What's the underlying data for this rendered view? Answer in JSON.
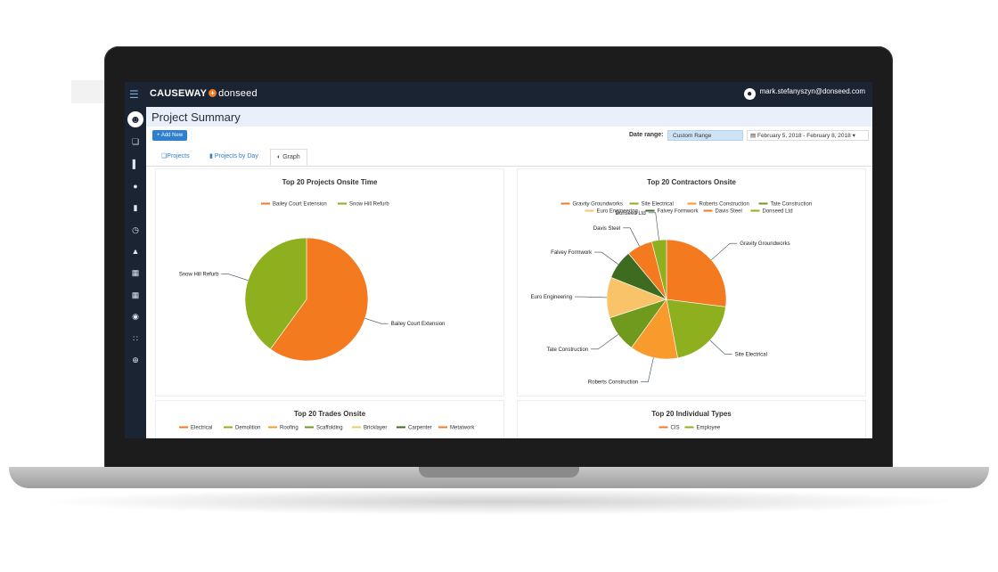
{
  "app": {
    "brand_bold": "CAUSEWAY",
    "brand_mark": "+",
    "brand_light": "donseed",
    "user_email": "mark.stefanyszyn@donseed.com"
  },
  "page": {
    "title": "Project Summary",
    "add_button": "+ Add New",
    "date_range_label": "Date range:",
    "date_range_value": "Custom Range",
    "date_picker_value": "February 5, 2018 - February 8, 2018"
  },
  "tabs": [
    {
      "label": "Projects",
      "icon": "projects-icon"
    },
    {
      "label": "Projects by Day",
      "icon": "file-icon"
    },
    {
      "label": "Graph",
      "icon": "pie-icon",
      "active": true
    }
  ],
  "sidebar": {
    "icons": [
      "user-avatar",
      "projects-icon",
      "chart-icon",
      "person-icon",
      "building-icon",
      "clock-icon",
      "bell-icon",
      "table-icon",
      "grid-icon",
      "dashboard-icon",
      "apps-icon",
      "globe-icon"
    ]
  },
  "colors": {
    "accent": "#2f7fcf",
    "topbar": "#1b2433",
    "orange": "#f47a20",
    "olive": "#8fb01e"
  },
  "chart_data": [
    {
      "type": "pie",
      "title": "Top 20 Projects Onsite Time",
      "legend": "top",
      "categories": [
        "Bailey Court Extension",
        "Snow Hill Refurb"
      ],
      "values": [
        60,
        40
      ],
      "colors": [
        "#f47a20",
        "#8fb01e"
      ]
    },
    {
      "type": "pie",
      "title": "Top 20 Contractors Onsite",
      "legend": "top",
      "categories": [
        "Gravity Groundworks",
        "Site Electrical",
        "Roberts Construction",
        "Tate Construction",
        "Euro Engineering",
        "Falvey Formwork",
        "Davis Steel",
        "Donseed Ltd"
      ],
      "values": [
        27,
        20,
        13,
        10,
        11,
        8,
        7,
        4
      ],
      "colors": [
        "#f47a20",
        "#8fb01e",
        "#f89a2c",
        "#6f9a1e",
        "#f9c36a",
        "#3d6b1f",
        "#f47a20",
        "#8fb01e"
      ]
    },
    {
      "type": "pie",
      "title": "Top 20 Trades Onsite",
      "legend": "top",
      "categories": [
        "Electrical",
        "Demolition",
        "Roofing",
        "Scaffolding",
        "Bricklayer",
        "Carpenter",
        "Metalwork"
      ],
      "colors": [
        "#f47a20",
        "#8fb01e",
        "#f89a2c",
        "#6f9a1e",
        "#f9c36a",
        "#3d6b1f",
        "#f47a20"
      ]
    },
    {
      "type": "pie",
      "title": "Top 20 Individual Types",
      "legend": "top",
      "categories": [
        "CIS",
        "Employee"
      ],
      "colors": [
        "#f47a20",
        "#8fb01e"
      ]
    }
  ]
}
